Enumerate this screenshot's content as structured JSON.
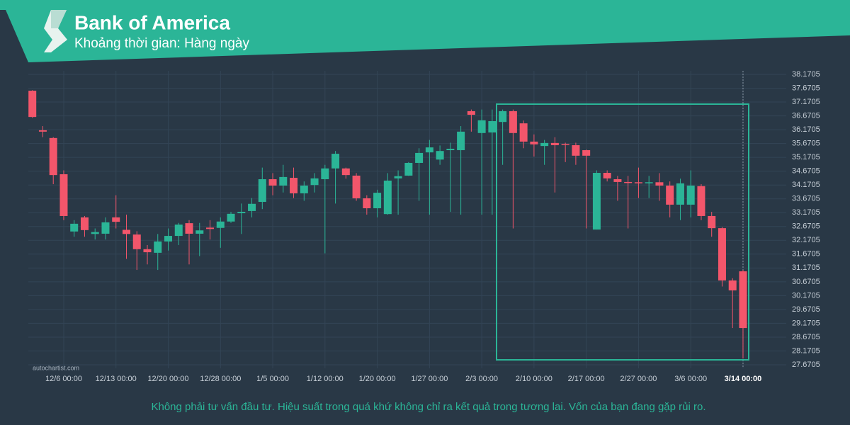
{
  "chart_data": {
    "type": "candlestick",
    "title": "Bank of America",
    "subtitle": "Khoảng thời gian: Hàng ngày",
    "watermark": "autochartist.com",
    "disclaimer": "Không phải tư vấn đầu tư. Hiệu suất trong quá khứ không chỉ ra kết quả trong tương lai. Vốn của bạn đang gặp rủi ro.",
    "categories": [
      null,
      null,
      null,
      "12/6 00:00",
      null,
      null,
      null,
      null,
      "12/13 00:00",
      null,
      null,
      null,
      null,
      "12/20 00:00",
      null,
      null,
      null,
      null,
      "12/28 00:00",
      null,
      null,
      null,
      null,
      "1/5 00:00",
      null,
      null,
      null,
      null,
      "1/12 00:00",
      null,
      null,
      null,
      null,
      "1/20 00:00",
      null,
      null,
      null,
      null,
      "1/27 00:00",
      null,
      null,
      null,
      null,
      "2/3 00:00",
      null,
      null,
      null,
      null,
      "2/10 00:00",
      null,
      null,
      null,
      null,
      "2/17 00:00",
      null,
      null,
      null,
      null,
      "2/27 00:00",
      null,
      null,
      null,
      null,
      "3/6 00:00",
      null,
      null,
      null,
      null,
      "3/14 00:00"
    ],
    "open": [
      37.58,
      36.15,
      35.87,
      34.56,
      32.49,
      33.0,
      32.4,
      32.41,
      33.0,
      32.55,
      32.38,
      31.85,
      31.72,
      32.13,
      32.33,
      32.79,
      32.41,
      32.63,
      32.62,
      32.85,
      33.15,
      33.23,
      33.56,
      34.38,
      34.15,
      34.43,
      33.87,
      34.17,
      34.38,
      34.77,
      34.77,
      34.51,
      33.69,
      33.33,
      33.12,
      34.41,
      34.51,
      34.97,
      35.35,
      35.09,
      35.43,
      35.43,
      36.84,
      36.05,
      36.07,
      36.45,
      36.84,
      36.4,
      35.74,
      35.58,
      35.69,
      35.66,
      35.61,
      35.43,
      32.56,
      34.61,
      34.38,
      34.28,
      34.27,
      34.25,
      34.27,
      34.15,
      33.46,
      33.46,
      34.13,
      33.05,
      32.61,
      30.72,
      31.05
    ],
    "high": [
      37.6,
      36.3,
      35.9,
      34.7,
      32.9,
      33.05,
      32.6,
      33.0,
      33.8,
      33.1,
      32.5,
      32.0,
      32.4,
      32.6,
      32.8,
      32.9,
      32.8,
      32.9,
      33.0,
      33.2,
      33.5,
      33.7,
      34.8,
      34.6,
      34.9,
      34.8,
      34.3,
      34.6,
      34.9,
      35.4,
      34.8,
      34.6,
      33.8,
      34.0,
      34.6,
      34.7,
      35.0,
      35.5,
      35.8,
      35.6,
      35.7,
      36.3,
      36.9,
      36.9,
      36.9,
      36.9,
      36.9,
      36.5,
      36.0,
      35.8,
      35.9,
      35.7,
      35.7,
      35.45,
      34.7,
      34.7,
      34.5,
      34.5,
      34.8,
      34.5,
      34.6,
      34.3,
      34.4,
      34.7,
      34.2,
      33.2,
      32.65,
      30.8,
      31.1
    ],
    "low": [
      36.6,
      35.9,
      34.2,
      32.9,
      32.3,
      32.3,
      32.2,
      32.2,
      32.6,
      31.5,
      31.1,
      31.3,
      31.1,
      31.8,
      32.0,
      31.3,
      31.6,
      32.2,
      31.9,
      32.8,
      32.4,
      33.0,
      33.3,
      33.8,
      33.9,
      33.7,
      33.6,
      33.9,
      31.7,
      33.5,
      34.4,
      33.6,
      33.1,
      33.0,
      33.1,
      33.1,
      34.5,
      33.6,
      33.1,
      34.9,
      33.2,
      33.1,
      36.1,
      33.1,
      33.1,
      34.9,
      32.6,
      35.5,
      35.2,
      34.9,
      33.9,
      35.0,
      34.9,
      32.6,
      32.56,
      34.3,
      33.6,
      32.6,
      33.7,
      33.7,
      33.6,
      33.0,
      32.9,
      33.0,
      32.9,
      32.3,
      30.5,
      29.0,
      27.9
    ],
    "close": [
      36.63,
      36.1,
      34.53,
      33.05,
      32.77,
      32.54,
      32.47,
      32.82,
      32.84,
      32.4,
      31.85,
      31.74,
      32.13,
      32.33,
      32.74,
      32.41,
      32.53,
      32.58,
      32.85,
      33.13,
      33.2,
      33.49,
      34.38,
      34.15,
      34.46,
      33.87,
      34.15,
      34.41,
      34.77,
      35.3,
      34.53,
      33.69,
      33.33,
      33.89,
      34.33,
      34.49,
      34.97,
      35.33,
      35.53,
      35.4,
      35.48,
      36.1,
      36.71,
      36.51,
      36.48,
      36.84,
      36.05,
      35.74,
      35.64,
      35.69,
      35.61,
      35.63,
      35.23,
      35.23,
      34.61,
      34.41,
      34.28,
      34.25,
      34.25,
      34.27,
      34.15,
      33.46,
      34.23,
      34.15,
      33.05,
      32.61,
      30.72,
      30.36,
      29.0
    ],
    "ylim": [
      27.6705,
      38.1705
    ],
    "yticks": [
      27.6705,
      28.1705,
      28.6705,
      29.1705,
      29.6705,
      30.1705,
      30.6705,
      31.1705,
      31.6705,
      32.1705,
      32.6705,
      33.1705,
      33.6705,
      34.1705,
      34.6705,
      35.1705,
      35.6705,
      36.1705,
      36.6705,
      37.1705,
      37.6705,
      38.1705
    ],
    "grid": true,
    "up_color": "#2bb597",
    "down_color": "#f3566b"
  }
}
